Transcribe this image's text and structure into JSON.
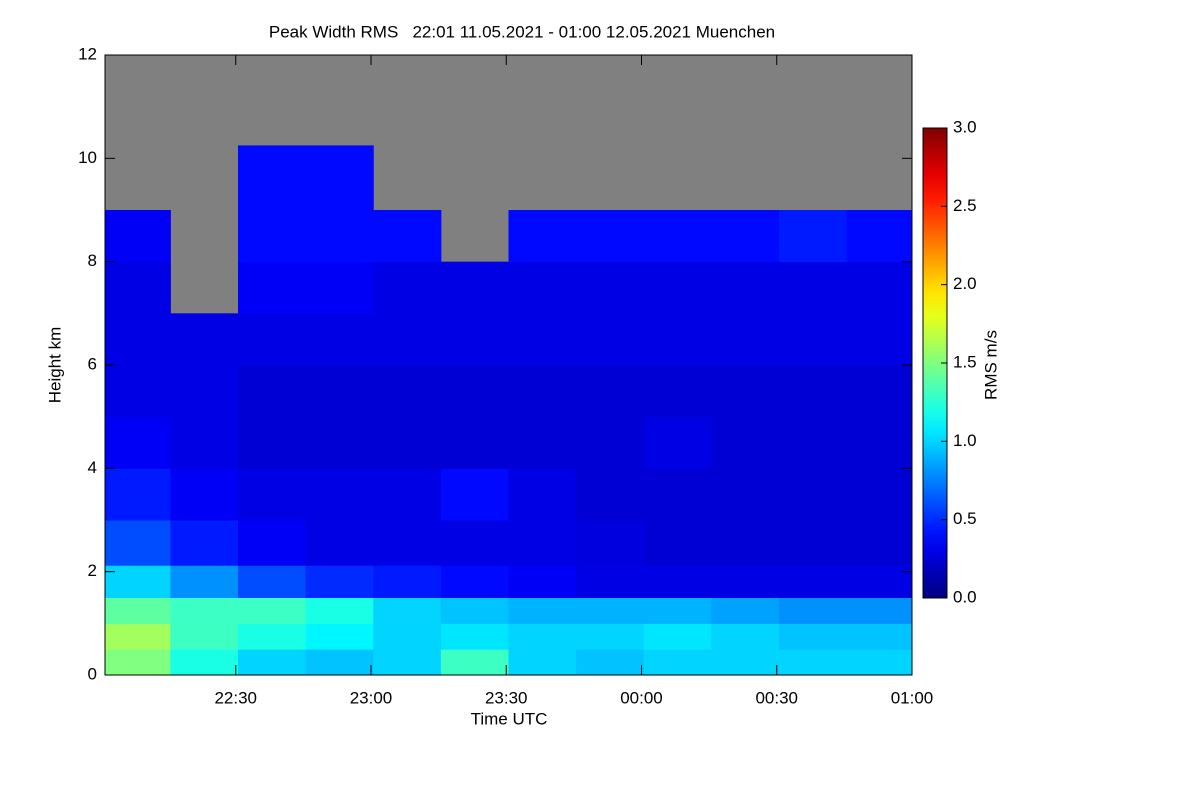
{
  "chart_data": {
    "type": "heatmap",
    "title": "Peak Width RMS   22:01 11.05.2021 - 01:00 12.05.2021 Muenchen",
    "x_label": "Time UTC",
    "y_label": "Height km",
    "colorbar_label": "RMS m/s",
    "xlim": [
      "22:01",
      "01:00"
    ],
    "xticks": [
      "22:30",
      "23:00",
      "23:30",
      "00:00",
      "00:30",
      "01:00"
    ],
    "ylim": [
      0,
      12
    ],
    "yticks": [
      0,
      2,
      4,
      6,
      8,
      10,
      12
    ],
    "zlim": [
      0,
      3
    ],
    "zticks": [
      {
        "value": 0,
        "label": "0.0"
      },
      {
        "value": 0.5,
        "label": "0.5"
      },
      {
        "value": 1,
        "label": "1.0"
      },
      {
        "value": 1.5,
        "label": "1.5"
      },
      {
        "value": 2,
        "label": "2.0"
      },
      {
        "value": 2.5,
        "label": "2.5"
      },
      {
        "value": 3,
        "label": "3.0"
      }
    ],
    "colormap": "jet",
    "nodata_color": "#808080",
    "x": [
      "22:08",
      "22:23",
      "22:38",
      "22:53",
      "23:08",
      "23:23",
      "23:38",
      "23:53",
      "00:08",
      "00:23",
      "00:38",
      "00:53"
    ],
    "y": [
      0.25,
      0.75,
      1.25,
      1.75,
      2.5,
      3.5,
      4.5,
      5.5,
      6.5,
      7.5,
      8.5,
      9.5,
      11
    ],
    "z": [
      [
        1.5,
        1.2,
        1.0,
        0.95,
        1.0,
        1.3,
        1.0,
        0.95,
        1.0,
        1.0,
        1.0,
        1.0
      ],
      [
        1.6,
        1.3,
        1.2,
        1.1,
        1.0,
        1.05,
        1.0,
        1.0,
        1.05,
        1.0,
        0.95,
        0.95
      ],
      [
        1.4,
        1.3,
        1.3,
        1.2,
        1.0,
        0.95,
        0.9,
        0.9,
        0.9,
        0.85,
        0.8,
        0.8
      ],
      [
        1.0,
        0.8,
        0.6,
        0.5,
        0.45,
        0.4,
        0.35,
        0.3,
        0.3,
        0.3,
        0.3,
        0.3
      ],
      [
        0.6,
        0.45,
        0.35,
        0.3,
        0.3,
        0.3,
        0.3,
        0.28,
        0.25,
        0.25,
        0.25,
        0.25
      ],
      [
        0.45,
        0.35,
        0.3,
        0.3,
        0.3,
        0.4,
        0.3,
        0.25,
        0.25,
        0.25,
        0.25,
        0.25
      ],
      [
        0.35,
        0.3,
        0.25,
        0.25,
        0.25,
        0.25,
        0.25,
        0.25,
        0.3,
        0.25,
        0.25,
        0.25
      ],
      [
        0.3,
        0.3,
        0.25,
        0.25,
        0.25,
        0.25,
        0.25,
        0.25,
        0.25,
        0.25,
        0.25,
        0.25
      ],
      [
        0.3,
        0.3,
        0.3,
        0.3,
        0.3,
        0.3,
        0.3,
        0.3,
        0.3,
        0.3,
        0.3,
        0.3
      ],
      [
        0.3,
        null,
        0.35,
        0.35,
        0.3,
        0.3,
        0.3,
        0.3,
        0.3,
        0.3,
        0.3,
        0.3
      ],
      [
        0.35,
        null,
        0.4,
        0.4,
        0.4,
        null,
        0.4,
        0.4,
        0.4,
        0.4,
        0.45,
        0.4
      ],
      [
        null,
        null,
        0.4,
        0.4,
        null,
        null,
        null,
        null,
        null,
        null,
        null,
        null
      ],
      [
        null,
        null,
        null,
        null,
        null,
        null,
        null,
        null,
        null,
        null,
        null,
        null
      ]
    ]
  }
}
